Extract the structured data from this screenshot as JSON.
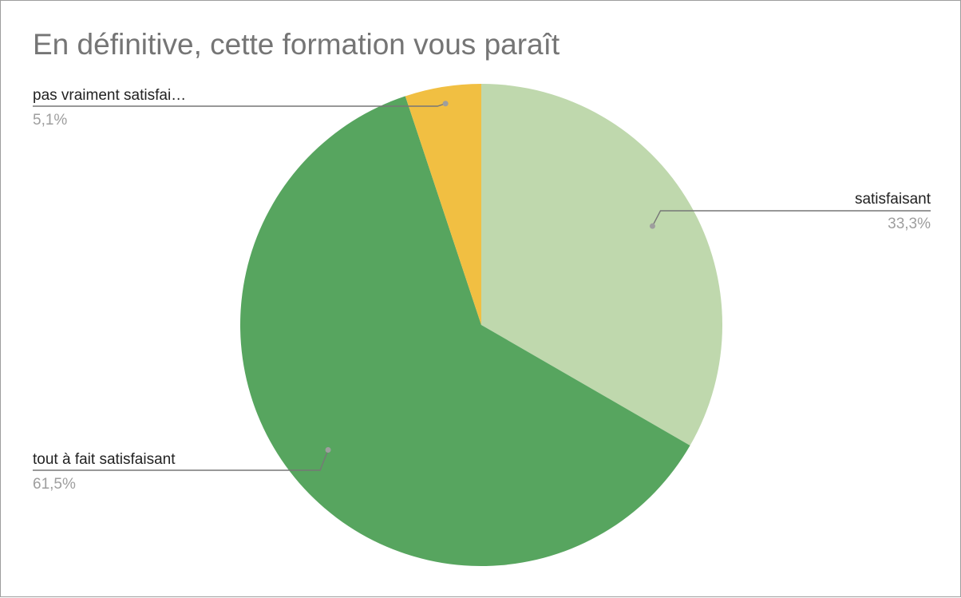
{
  "chart_data": {
    "type": "pie",
    "title": "En définitive, cette formation vous paraît",
    "slices": [
      {
        "label": "satisfaisant",
        "value": 33.3,
        "display": "33,3%",
        "color": "#bfd8ad"
      },
      {
        "label": "tout à fait satisfaisant",
        "value": 61.5,
        "display": "61,5%",
        "color": "#57a55f"
      },
      {
        "label": "pas vraiment satisfai…",
        "value": 5.1,
        "display": "5,1%",
        "color": "#f1bf42"
      }
    ],
    "start_angle": "top",
    "direction": "clockwise",
    "legend": "none"
  }
}
